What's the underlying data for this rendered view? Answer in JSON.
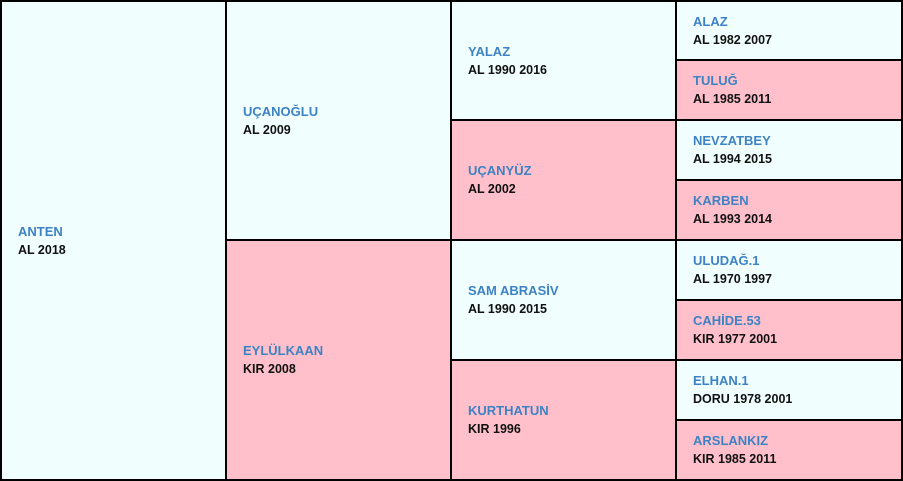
{
  "pedigree": {
    "subject": {
      "name": "ANTEN",
      "info": "AL 2018"
    },
    "sire": {
      "name": "UÇANOĞLU",
      "info": "AL 2009"
    },
    "dam": {
      "name": "EYLÜLKAAN",
      "info": "KIR 2008"
    },
    "sire_sire": {
      "name": "YALAZ",
      "info": "AL 1990 2016"
    },
    "sire_dam": {
      "name": "UÇANYÜZ",
      "info": "AL 2002"
    },
    "dam_sire": {
      "name": "SAM ABRASİV",
      "info": "AL 1990 2015"
    },
    "dam_dam": {
      "name": "KURTHATUN",
      "info": "KIR 1996"
    },
    "ggen": [
      {
        "name": "ALAZ",
        "info": "AL 1982 2007"
      },
      {
        "name": "TULUĞ",
        "info": "AL 1985 2011"
      },
      {
        "name": "NEVZATBEY",
        "info": "AL 1994 2015"
      },
      {
        "name": "KARBEN",
        "info": "AL 1993 2014"
      },
      {
        "name": "ULUDAĞ.1",
        "info": "AL 1970 1997"
      },
      {
        "name": "CAHİDE.53",
        "info": "KIR 1977 2001"
      },
      {
        "name": "ELHAN.1",
        "info": "DORU 1978 2001"
      },
      {
        "name": "ARSLANKIZ",
        "info": "KIR 1985 2011"
      }
    ]
  },
  "colors": {
    "male_bg": "#f0fffe",
    "female_bg": "#ffc0cb",
    "name_text": "#3d82c4",
    "border": "#000000"
  }
}
